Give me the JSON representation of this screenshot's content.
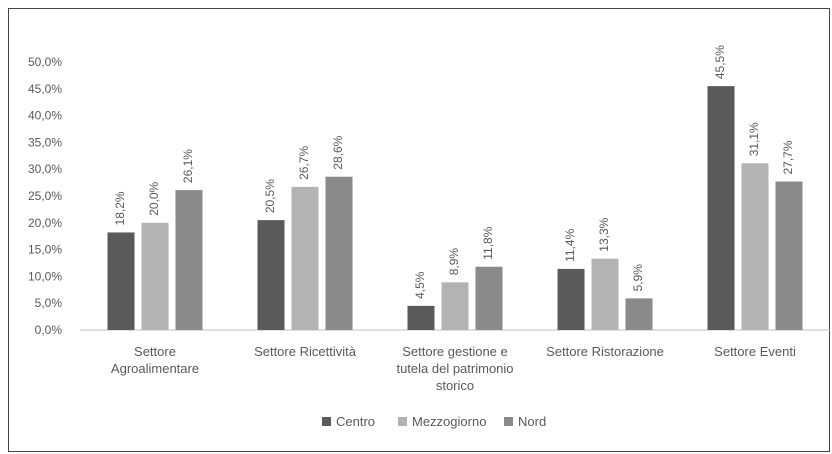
{
  "chart_data": {
    "type": "bar",
    "title": "",
    "xlabel": "",
    "ylabel": "",
    "ylim": [
      0,
      50
    ],
    "y_ticks": [
      "0,0%",
      "5,0%",
      "10,0%",
      "15,0%",
      "20,0%",
      "25,0%",
      "30,0%",
      "35,0%",
      "40,0%",
      "45,0%",
      "50,0%"
    ],
    "grid": false,
    "legend_position": "bottom",
    "categories": [
      [
        "Settore",
        "Agroalimentare"
      ],
      [
        "Settore Ricettività"
      ],
      [
        "Settore gestione e",
        "tutela del patrimonio",
        "storico"
      ],
      [
        "Settore Ristorazione"
      ],
      [
        "Settore Eventi"
      ]
    ],
    "series": [
      {
        "name": "Centro",
        "color": "#5a5a5a",
        "values": [
          18.2,
          20.5,
          4.5,
          11.4,
          45.5
        ],
        "labels": [
          "18,2%",
          "20,5%",
          "4,5%",
          "11,4%",
          "45,5%"
        ]
      },
      {
        "name": "Mezzogiorno",
        "color": "#b3b3b3",
        "values": [
          20.0,
          26.7,
          8.9,
          13.3,
          31.1
        ],
        "labels": [
          "20,0%",
          "26,7%",
          "8,9%",
          "13,3%",
          "31,1%"
        ]
      },
      {
        "name": "Nord",
        "color": "#8a8a8a",
        "values": [
          26.1,
          28.6,
          11.8,
          5.9,
          27.7
        ],
        "labels": [
          "26,1%",
          "28,6%",
          "11,8%",
          "5,9%",
          "27,7%"
        ]
      }
    ]
  }
}
